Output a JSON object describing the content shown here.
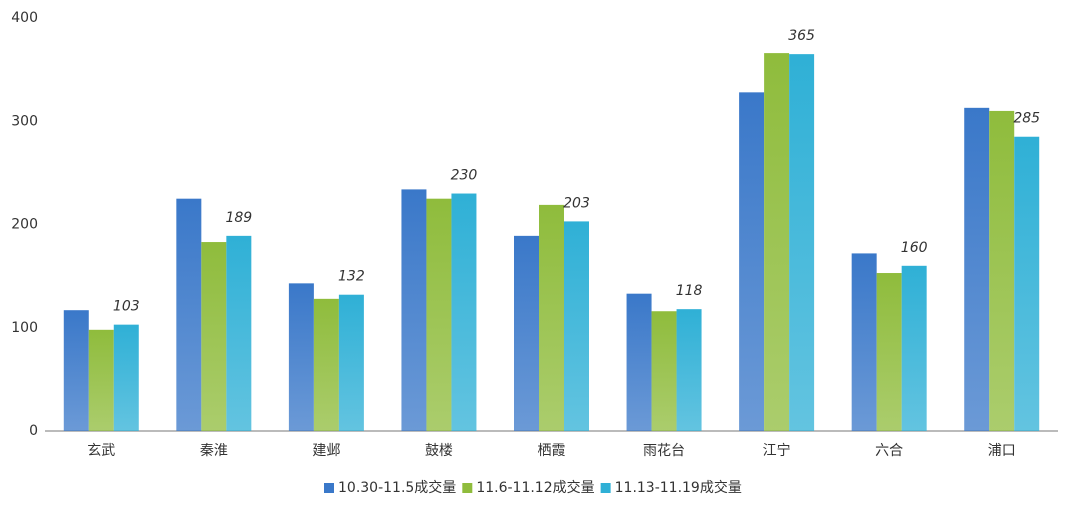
{
  "chart_data": {
    "type": "bar",
    "categories": [
      "玄武",
      "秦淮",
      "建邺",
      "鼓楼",
      "栖霞",
      "雨花台",
      "江宁",
      "六合",
      "浦口"
    ],
    "series": [
      {
        "name": "10.30-11.5成交量",
        "color": "#3a78c9",
        "values": [
          117,
          225,
          143,
          234,
          189,
          133,
          328,
          172,
          313
        ]
      },
      {
        "name": "11.6-11.12成交量",
        "color": "#8fbc3c",
        "values": [
          98,
          183,
          128,
          225,
          219,
          116,
          366,
          153,
          310
        ]
      },
      {
        "name": "11.13-11.19成交量",
        "color": "#2fb0d6",
        "values": [
          103,
          189,
          132,
          230,
          203,
          118,
          365,
          160,
          285
        ],
        "labels": true
      }
    ],
    "ylim": [
      0,
      400
    ],
    "yticks": [
      0,
      100,
      200,
      300,
      400
    ],
    "grid": false,
    "legend": "bottom"
  }
}
